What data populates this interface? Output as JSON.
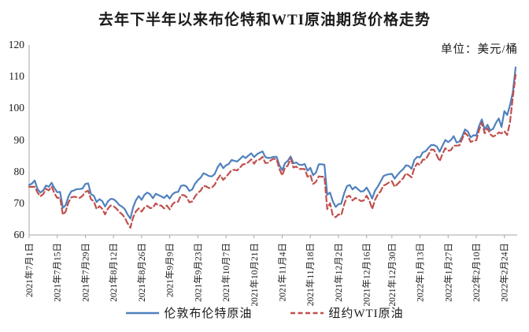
{
  "header": {
    "title": "去年下半年以来布伦特和WTI原油期货价格走势",
    "unit_label": "单位：美元/桶"
  },
  "legend": {
    "brent_label": "伦敦布伦特原油",
    "wti_label": "纽约WTI原油"
  },
  "colors": {
    "brent_line": "#4F81BD",
    "wti_line": "#C0504D",
    "axis": "#A6A6A6",
    "text": "#1a1a1a"
  },
  "chart_data": {
    "type": "line",
    "title": "去年下半年以来布伦特和WTI原油期货价格走势",
    "ylabel": "美元/桶",
    "ylim": [
      60,
      120
    ],
    "yticks": [
      60,
      70,
      80,
      90,
      100,
      110,
      120
    ],
    "grid": false,
    "legend_position": "bottom",
    "xticks": [
      {
        "label": "2021年7月1日",
        "date": "2021-07-01"
      },
      {
        "label": "2021年7月15日",
        "date": "2021-07-15"
      },
      {
        "label": "2021年7月29日",
        "date": "2021-07-29"
      },
      {
        "label": "2021年8月12日",
        "date": "2021-08-12"
      },
      {
        "label": "2021年8月26日",
        "date": "2021-08-26"
      },
      {
        "label": "2021年9月9日",
        "date": "2021-09-09"
      },
      {
        "label": "2021年9月23日",
        "date": "2021-09-23"
      },
      {
        "label": "2021年10月7日",
        "date": "2021-10-07"
      },
      {
        "label": "2021年10月21日",
        "date": "2021-10-21"
      },
      {
        "label": "2021年11月4日",
        "date": "2021-11-04"
      },
      {
        "label": "2021年11月18日",
        "date": "2021-11-18"
      },
      {
        "label": "2021年12月2日",
        "date": "2021-12-02"
      },
      {
        "label": "2021年12月16日",
        "date": "2021-12-16"
      },
      {
        "label": "2021年12月30日",
        "date": "2021-12-30"
      },
      {
        "label": "2022年1月13日",
        "date": "2022-01-13"
      },
      {
        "label": "2022年1月27日",
        "date": "2022-01-27"
      },
      {
        "label": "2022年2月10日",
        "date": "2022-02-10"
      },
      {
        "label": "2022年2月24日",
        "date": "2022-02-24"
      }
    ],
    "x": [
      "2021-07-01",
      "2021-07-02",
      "2021-07-05",
      "2021-07-06",
      "2021-07-07",
      "2021-07-08",
      "2021-07-09",
      "2021-07-12",
      "2021-07-13",
      "2021-07-14",
      "2021-07-15",
      "2021-07-16",
      "2021-07-19",
      "2021-07-20",
      "2021-07-21",
      "2021-07-22",
      "2021-07-23",
      "2021-07-26",
      "2021-07-27",
      "2021-07-28",
      "2021-07-29",
      "2021-07-30",
      "2021-08-02",
      "2021-08-03",
      "2021-08-04",
      "2021-08-05",
      "2021-08-06",
      "2021-08-09",
      "2021-08-10",
      "2021-08-11",
      "2021-08-12",
      "2021-08-13",
      "2021-08-16",
      "2021-08-17",
      "2021-08-18",
      "2021-08-19",
      "2021-08-20",
      "2021-08-23",
      "2021-08-24",
      "2021-08-25",
      "2021-08-26",
      "2021-08-27",
      "2021-08-30",
      "2021-08-31",
      "2021-09-01",
      "2021-09-02",
      "2021-09-03",
      "2021-09-06",
      "2021-09-07",
      "2021-09-08",
      "2021-09-09",
      "2021-09-10",
      "2021-09-13",
      "2021-09-14",
      "2021-09-15",
      "2021-09-16",
      "2021-09-17",
      "2021-09-20",
      "2021-09-21",
      "2021-09-22",
      "2021-09-23",
      "2021-09-24",
      "2021-09-27",
      "2021-09-28",
      "2021-09-29",
      "2021-09-30",
      "2021-10-01",
      "2021-10-04",
      "2021-10-05",
      "2021-10-06",
      "2021-10-07",
      "2021-10-08",
      "2021-10-11",
      "2021-10-12",
      "2021-10-13",
      "2021-10-14",
      "2021-10-15",
      "2021-10-18",
      "2021-10-19",
      "2021-10-20",
      "2021-10-21",
      "2021-10-22",
      "2021-10-25",
      "2021-10-26",
      "2021-10-27",
      "2021-10-28",
      "2021-10-29",
      "2021-11-01",
      "2021-11-02",
      "2021-11-03",
      "2021-11-04",
      "2021-11-05",
      "2021-11-08",
      "2021-11-09",
      "2021-11-10",
      "2021-11-11",
      "2021-11-12",
      "2021-11-15",
      "2021-11-16",
      "2021-11-17",
      "2021-11-18",
      "2021-11-19",
      "2021-11-22",
      "2021-11-23",
      "2021-11-24",
      "2021-11-25",
      "2021-11-26",
      "2021-11-29",
      "2021-11-30",
      "2021-12-01",
      "2021-12-02",
      "2021-12-03",
      "2021-12-06",
      "2021-12-07",
      "2021-12-08",
      "2021-12-09",
      "2021-12-10",
      "2021-12-13",
      "2021-12-14",
      "2021-12-15",
      "2021-12-16",
      "2021-12-17",
      "2021-12-20",
      "2021-12-21",
      "2021-12-22",
      "2021-12-23",
      "2021-12-27",
      "2021-12-28",
      "2021-12-29",
      "2021-12-30",
      "2021-12-31",
      "2022-01-03",
      "2022-01-04",
      "2022-01-05",
      "2022-01-06",
      "2022-01-07",
      "2022-01-10",
      "2022-01-11",
      "2022-01-12",
      "2022-01-13",
      "2022-01-14",
      "2022-01-17",
      "2022-01-18",
      "2022-01-19",
      "2022-01-20",
      "2022-01-21",
      "2022-01-24",
      "2022-01-25",
      "2022-01-26",
      "2022-01-27",
      "2022-01-28",
      "2022-01-31",
      "2022-02-01",
      "2022-02-02",
      "2022-02-03",
      "2022-02-04",
      "2022-02-07",
      "2022-02-08",
      "2022-02-09",
      "2022-02-10",
      "2022-02-11",
      "2022-02-14",
      "2022-02-15",
      "2022-02-16",
      "2022-02-17",
      "2022-02-18",
      "2022-02-21",
      "2022-02-22",
      "2022-02-23",
      "2022-02-24",
      "2022-02-25",
      "2022-02-28",
      "2022-03-01",
      "2022-03-02"
    ],
    "series": [
      {
        "name": "伦敦布伦特原油",
        "style": "solid",
        "color": "#4F81BD",
        "values": [
          75.8,
          76.2,
          77.2,
          74.5,
          73.4,
          74.1,
          75.6,
          75.2,
          76.5,
          74.8,
          73.5,
          73.6,
          68.6,
          69.4,
          72.2,
          73.8,
          74.1,
          74.5,
          74.5,
          74.7,
          76.1,
          76.3,
          72.9,
          72.4,
          70.4,
          71.3,
          70.7,
          69.0,
          70.6,
          71.4,
          71.3,
          70.6,
          69.5,
          69.0,
          68.2,
          66.5,
          65.2,
          68.8,
          71.0,
          72.3,
          71.1,
          72.7,
          73.4,
          72.9,
          71.6,
          73.0,
          72.6,
          72.2,
          71.7,
          72.6,
          71.5,
          72.9,
          73.5,
          73.6,
          75.5,
          75.7,
          75.3,
          73.9,
          74.4,
          76.2,
          77.3,
          78.1,
          79.5,
          79.1,
          78.6,
          78.5,
          79.3,
          81.3,
          82.6,
          81.1,
          82.0,
          82.4,
          83.7,
          83.4,
          83.2,
          84.0,
          84.9,
          84.3,
          85.1,
          85.8,
          84.6,
          85.5,
          86.0,
          86.4,
          84.6,
          84.3,
          84.4,
          84.7,
          84.7,
          82.0,
          80.5,
          82.7,
          83.4,
          84.8,
          82.6,
          82.9,
          82.2,
          82.1,
          82.4,
          80.3,
          81.2,
          78.9,
          79.7,
          82.3,
          82.3,
          82.2,
          72.7,
          73.4,
          70.6,
          68.9,
          69.7,
          69.9,
          73.1,
          75.4,
          75.8,
          74.4,
          75.2,
          74.4,
          73.7,
          73.9,
          75.0,
          73.5,
          71.5,
          74.0,
          75.3,
          76.9,
          78.6,
          79.0,
          79.2,
          79.3,
          77.8,
          79.0,
          80.0,
          80.8,
          82.0,
          81.8,
          80.9,
          83.7,
          84.7,
          84.5,
          86.1,
          86.5,
          87.5,
          88.4,
          88.4,
          87.9,
          86.3,
          88.2,
          90.0,
          89.3,
          90.0,
          91.2,
          89.2,
          89.5,
          91.1,
          93.3,
          92.7,
          90.8,
          91.5,
          91.4,
          94.4,
          96.5,
          93.3,
          94.8,
          93.0,
          93.5,
          95.4,
          96.8,
          94.1,
          99.1,
          97.9,
          101.0,
          105.0,
          112.9
        ]
      },
      {
        "name": "纽约WTI原油",
        "style": "dashed",
        "color": "#C0504D",
        "values": [
          75.2,
          75.2,
          75.2,
          73.4,
          72.2,
          72.9,
          74.6,
          74.1,
          75.3,
          73.1,
          71.7,
          71.8,
          66.4,
          67.4,
          70.3,
          71.9,
          72.1,
          71.9,
          71.7,
          72.4,
          73.6,
          74.0,
          71.3,
          70.6,
          68.2,
          69.1,
          68.3,
          66.5,
          68.3,
          69.3,
          69.1,
          68.4,
          67.3,
          66.6,
          65.5,
          63.7,
          62.3,
          65.6,
          67.5,
          68.4,
          67.4,
          68.7,
          69.2,
          68.5,
          68.6,
          70.0,
          69.3,
          69.3,
          68.4,
          69.3,
          68.1,
          69.7,
          70.5,
          70.5,
          72.6,
          72.6,
          72.0,
          70.3,
          70.6,
          72.2,
          73.3,
          74.0,
          75.5,
          75.3,
          74.8,
          75.0,
          75.9,
          77.6,
          78.9,
          77.4,
          78.3,
          79.4,
          80.5,
          80.6,
          80.4,
          81.3,
          82.3,
          82.4,
          83.0,
          83.9,
          82.5,
          83.8,
          83.8,
          84.7,
          82.7,
          82.8,
          83.6,
          84.1,
          83.9,
          80.9,
          78.8,
          81.3,
          81.9,
          84.2,
          81.3,
          81.6,
          80.8,
          80.9,
          80.8,
          78.4,
          79.0,
          76.1,
          76.8,
          78.5,
          78.4,
          78.4,
          68.2,
          70.0,
          66.2,
          65.6,
          66.5,
          66.3,
          69.5,
          72.1,
          72.4,
          70.9,
          71.7,
          71.3,
          70.7,
          70.9,
          72.4,
          70.9,
          68.2,
          71.1,
          72.8,
          73.8,
          75.6,
          76.0,
          76.6,
          77.0,
          75.2,
          76.1,
          77.0,
          77.9,
          79.5,
          78.9,
          78.2,
          81.2,
          82.6,
          82.1,
          83.8,
          83.8,
          85.4,
          87.0,
          86.9,
          85.1,
          83.3,
          85.6,
          87.4,
          86.6,
          86.8,
          88.2,
          88.2,
          88.3,
          90.3,
          92.3,
          91.3,
          89.4,
          89.7,
          89.9,
          93.1,
          95.5,
          92.1,
          93.7,
          91.8,
          91.1,
          91.5,
          92.4,
          92.1,
          92.8,
          91.6,
          95.7,
          103.4,
          110.6
        ]
      }
    ]
  }
}
